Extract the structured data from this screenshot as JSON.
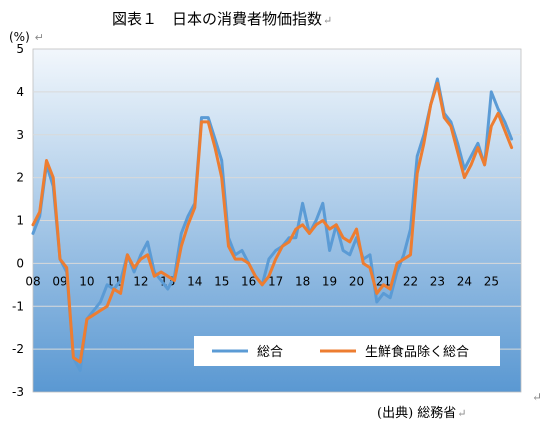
{
  "page": {
    "title": "図表１　日本の消費者物価指数",
    "return_mark": "↵",
    "unit": "(%)",
    "source": "(出典) 総務省"
  },
  "colors": {
    "series1": "#5B9BD5",
    "series2": "#ED7D31",
    "plot_bg_top": "#F2F7FC",
    "plot_bg_bottom": "#5A98D2",
    "gridline": "#D9D9D9",
    "plot_border": "#BFBFBF"
  },
  "chart_data": {
    "type": "line",
    "title": "図表１　日本の消費者物価指数",
    "ylabel": "(%)",
    "xlabel": "",
    "ylim": [
      -3,
      5
    ],
    "yticks": [
      5,
      4,
      3,
      2,
      1,
      0,
      -1,
      -2,
      -3
    ],
    "xlim": [
      2008.0,
      2026.1
    ],
    "xtick_labels": [
      "08",
      "09",
      "10",
      "11",
      "12",
      "13",
      "14",
      "15",
      "16",
      "17",
      "18",
      "19",
      "20",
      "21",
      "22",
      "23",
      "24",
      "25"
    ],
    "grid": true,
    "legend_position": "bottom-right",
    "series": [
      {
        "name": "総合",
        "points": [
          [
            2008.0,
            0.7
          ],
          [
            2008.25,
            1.1
          ],
          [
            2008.5,
            2.3
          ],
          [
            2008.75,
            1.8
          ],
          [
            2009.0,
            0.1
          ],
          [
            2009.25,
            -0.2
          ],
          [
            2009.5,
            -2.2
          ],
          [
            2009.75,
            -2.5
          ],
          [
            2010.0,
            -1.3
          ],
          [
            2010.25,
            -1.1
          ],
          [
            2010.5,
            -0.9
          ],
          [
            2010.75,
            -0.5
          ],
          [
            2011.0,
            -0.6
          ],
          [
            2011.25,
            -0.4
          ],
          [
            2011.5,
            0.2
          ],
          [
            2011.75,
            -0.2
          ],
          [
            2012.0,
            0.2
          ],
          [
            2012.25,
            0.5
          ],
          [
            2012.5,
            -0.2
          ],
          [
            2012.75,
            -0.4
          ],
          [
            2013.0,
            -0.6
          ],
          [
            2013.25,
            -0.3
          ],
          [
            2013.5,
            0.7
          ],
          [
            2013.75,
            1.1
          ],
          [
            2014.0,
            1.4
          ],
          [
            2014.25,
            3.4
          ],
          [
            2014.5,
            3.4
          ],
          [
            2014.75,
            2.9
          ],
          [
            2015.0,
            2.4
          ],
          [
            2015.25,
            0.6
          ],
          [
            2015.5,
            0.2
          ],
          [
            2015.75,
            0.3
          ],
          [
            2016.0,
            0.0
          ],
          [
            2016.25,
            -0.3
          ],
          [
            2016.5,
            -0.5
          ],
          [
            2016.75,
            0.1
          ],
          [
            2017.0,
            0.3
          ],
          [
            2017.25,
            0.4
          ],
          [
            2017.5,
            0.6
          ],
          [
            2017.75,
            0.6
          ],
          [
            2018.0,
            1.4
          ],
          [
            2018.25,
            0.7
          ],
          [
            2018.5,
            1.0
          ],
          [
            2018.75,
            1.4
          ],
          [
            2019.0,
            0.3
          ],
          [
            2019.25,
            0.9
          ],
          [
            2019.5,
            0.3
          ],
          [
            2019.75,
            0.2
          ],
          [
            2020.0,
            0.6
          ],
          [
            2020.25,
            0.1
          ],
          [
            2020.5,
            0.2
          ],
          [
            2020.75,
            -0.9
          ],
          [
            2021.0,
            -0.7
          ],
          [
            2021.25,
            -0.8
          ],
          [
            2021.5,
            -0.2
          ],
          [
            2021.75,
            0.2
          ],
          [
            2022.0,
            0.8
          ],
          [
            2022.25,
            2.5
          ],
          [
            2022.5,
            3.0
          ],
          [
            2022.75,
            3.7
          ],
          [
            2023.0,
            4.3
          ],
          [
            2023.25,
            3.5
          ],
          [
            2023.5,
            3.3
          ],
          [
            2023.75,
            2.8
          ],
          [
            2024.0,
            2.2
          ],
          [
            2024.25,
            2.5
          ],
          [
            2024.5,
            2.8
          ],
          [
            2024.75,
            2.3
          ],
          [
            2025.0,
            4.0
          ],
          [
            2025.25,
            3.6
          ],
          [
            2025.5,
            3.3
          ],
          [
            2025.75,
            2.9
          ]
        ]
      },
      {
        "name": "生鮮食品除く総合",
        "points": [
          [
            2008.0,
            0.9
          ],
          [
            2008.25,
            1.2
          ],
          [
            2008.5,
            2.4
          ],
          [
            2008.75,
            2.0
          ],
          [
            2009.0,
            0.1
          ],
          [
            2009.25,
            -0.1
          ],
          [
            2009.5,
            -2.2
          ],
          [
            2009.75,
            -2.3
          ],
          [
            2010.0,
            -1.3
          ],
          [
            2010.25,
            -1.2
          ],
          [
            2010.5,
            -1.1
          ],
          [
            2010.75,
            -1.0
          ],
          [
            2011.0,
            -0.6
          ],
          [
            2011.25,
            -0.7
          ],
          [
            2011.5,
            0.2
          ],
          [
            2011.75,
            -0.1
          ],
          [
            2012.0,
            0.1
          ],
          [
            2012.25,
            0.2
          ],
          [
            2012.5,
            -0.3
          ],
          [
            2012.75,
            -0.2
          ],
          [
            2013.0,
            -0.3
          ],
          [
            2013.25,
            -0.4
          ],
          [
            2013.5,
            0.4
          ],
          [
            2013.75,
            0.9
          ],
          [
            2014.0,
            1.3
          ],
          [
            2014.25,
            3.3
          ],
          [
            2014.5,
            3.3
          ],
          [
            2014.75,
            2.7
          ],
          [
            2015.0,
            2.0
          ],
          [
            2015.25,
            0.4
          ],
          [
            2015.5,
            0.1
          ],
          [
            2015.75,
            0.1
          ],
          [
            2016.0,
            0.0
          ],
          [
            2016.25,
            -0.3
          ],
          [
            2016.5,
            -0.5
          ],
          [
            2016.75,
            -0.3
          ],
          [
            2017.0,
            0.1
          ],
          [
            2017.25,
            0.4
          ],
          [
            2017.5,
            0.5
          ],
          [
            2017.75,
            0.8
          ],
          [
            2018.0,
            0.9
          ],
          [
            2018.25,
            0.7
          ],
          [
            2018.5,
            0.9
          ],
          [
            2018.75,
            1.0
          ],
          [
            2019.0,
            0.8
          ],
          [
            2019.25,
            0.9
          ],
          [
            2019.5,
            0.6
          ],
          [
            2019.75,
            0.5
          ],
          [
            2020.0,
            0.8
          ],
          [
            2020.25,
            0.0
          ],
          [
            2020.5,
            -0.1
          ],
          [
            2020.75,
            -0.7
          ],
          [
            2021.0,
            -0.5
          ],
          [
            2021.25,
            -0.6
          ],
          [
            2021.5,
            0.0
          ],
          [
            2021.75,
            0.1
          ],
          [
            2022.0,
            0.2
          ],
          [
            2022.25,
            2.1
          ],
          [
            2022.5,
            2.8
          ],
          [
            2022.75,
            3.7
          ],
          [
            2023.0,
            4.2
          ],
          [
            2023.25,
            3.4
          ],
          [
            2023.5,
            3.2
          ],
          [
            2023.75,
            2.6
          ],
          [
            2024.0,
            2.0
          ],
          [
            2024.25,
            2.3
          ],
          [
            2024.5,
            2.7
          ],
          [
            2024.75,
            2.3
          ],
          [
            2025.0,
            3.2
          ],
          [
            2025.25,
            3.5
          ],
          [
            2025.5,
            3.1
          ],
          [
            2025.75,
            2.7
          ]
        ]
      }
    ]
  }
}
